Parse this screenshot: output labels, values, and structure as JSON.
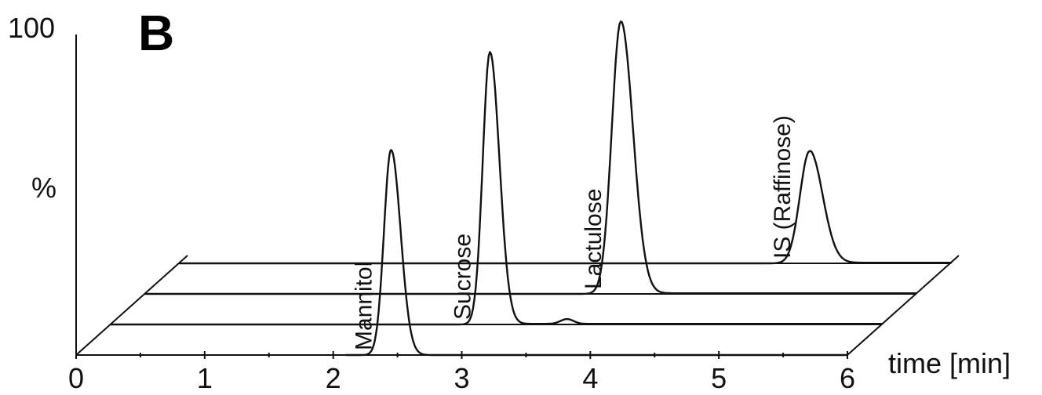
{
  "chart_data": {
    "type": "line",
    "panel_label": "B",
    "xlabel": "time [min]",
    "ylabel": "%",
    "y_max_label": "100",
    "xlim": [
      0,
      6
    ],
    "x_ticks": [
      "0",
      "1",
      "2",
      "3",
      "4",
      "5",
      "6"
    ],
    "ylim": [
      0,
      100
    ],
    "grid": false,
    "series": [
      {
        "name": "Mannitol",
        "peak_time": 2.45,
        "peak_height": 64,
        "width": 0.055,
        "baseline": 0
      },
      {
        "name": "Sucrose",
        "peak_time": 2.95,
        "peak_height": 85,
        "width": 0.055,
        "baseline": 1,
        "minor_bump_time": 3.55,
        "minor_bump_height": 1.5
      },
      {
        "name": "Lactulose",
        "peak_time": 3.7,
        "peak_height": 85,
        "width": 0.07,
        "baseline": 1
      },
      {
        "name": "IS (Raffinose)",
        "peak_time": 4.9,
        "peak_height": 35,
        "width": 0.075,
        "baseline": 1
      }
    ]
  }
}
